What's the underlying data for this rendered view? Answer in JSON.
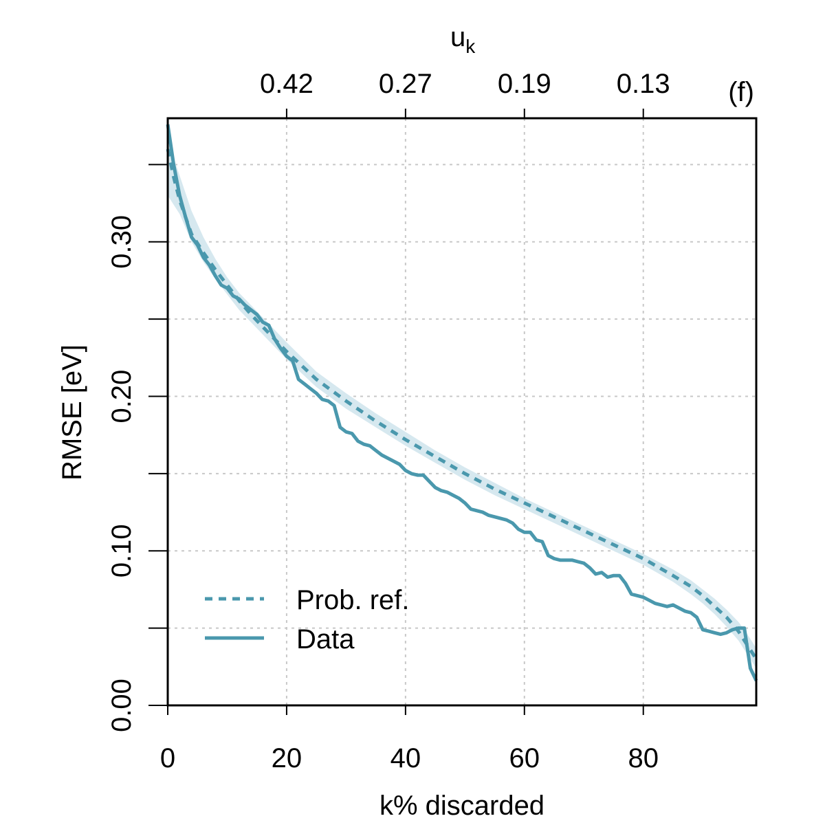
{
  "chart_data": {
    "type": "line",
    "panel_label": "(f)",
    "xlabel": "k% discarded",
    "ylabel": "RMSE [eV]",
    "top_axis_label_main": "u",
    "top_axis_label_sub": "k",
    "xlim": [
      0,
      99
    ],
    "ylim": [
      0,
      0.38
    ],
    "x_ticks": [
      0,
      20,
      40,
      60,
      80
    ],
    "x_tick_labels": [
      "0",
      "20",
      "40",
      "60",
      "80"
    ],
    "y_ticks": [
      0.0,
      0.05,
      0.1,
      0.15,
      0.2,
      0.25,
      0.3,
      0.35
    ],
    "y_tick_labels": [
      "0.00",
      "",
      "0.10",
      "",
      "0.20",
      "",
      "0.30",
      ""
    ],
    "top_ticks": [
      20,
      40,
      60,
      80
    ],
    "top_tick_labels": [
      "0.42",
      "0.27",
      "0.19",
      "0.13"
    ],
    "grid": true,
    "legend_position": "bottom-left",
    "band": {
      "name": "Prob. ref. 95% band",
      "color": "#d6e8ef",
      "x": [
        0,
        2,
        4,
        6,
        8,
        10,
        12,
        14,
        16,
        18,
        20,
        25,
        30,
        35,
        40,
        45,
        50,
        55,
        60,
        65,
        70,
        75,
        80,
        85,
        88,
        90,
        92,
        94,
        96,
        97,
        98,
        99
      ],
      "lower": [
        0.33,
        0.318,
        0.3,
        0.287,
        0.276,
        0.266,
        0.256,
        0.248,
        0.24,
        0.232,
        0.224,
        0.206,
        0.192,
        0.18,
        0.168,
        0.157,
        0.146,
        0.136,
        0.127,
        0.118,
        0.109,
        0.1,
        0.091,
        0.08,
        0.072,
        0.066,
        0.059,
        0.051,
        0.042,
        0.036,
        0.03,
        0.024
      ],
      "upper": [
        0.365,
        0.343,
        0.32,
        0.303,
        0.289,
        0.277,
        0.267,
        0.259,
        0.251,
        0.243,
        0.235,
        0.216,
        0.202,
        0.189,
        0.177,
        0.165,
        0.154,
        0.144,
        0.134,
        0.125,
        0.116,
        0.107,
        0.098,
        0.088,
        0.081,
        0.075,
        0.069,
        0.062,
        0.054,
        0.049,
        0.043,
        0.037
      ]
    },
    "series": [
      {
        "name": "Prob. ref.",
        "style": "dashed",
        "color": "#4a98ad",
        "x": [
          0,
          1,
          2,
          3,
          4,
          6,
          8,
          10,
          12,
          14,
          16,
          18,
          20,
          25,
          30,
          35,
          40,
          45,
          50,
          55,
          60,
          65,
          70,
          75,
          80,
          85,
          88,
          90,
          92,
          94,
          96,
          97,
          98,
          99
        ],
        "values": [
          0.36,
          0.342,
          0.327,
          0.316,
          0.305,
          0.293,
          0.282,
          0.272,
          0.262,
          0.253,
          0.245,
          0.237,
          0.229,
          0.211,
          0.197,
          0.184,
          0.172,
          0.161,
          0.15,
          0.14,
          0.131,
          0.122,
          0.113,
          0.104,
          0.095,
          0.084,
          0.077,
          0.071,
          0.064,
          0.057,
          0.048,
          0.042,
          0.036,
          0.03
        ]
      },
      {
        "name": "Data",
        "style": "solid",
        "color": "#4a98ad",
        "x": [
          0,
          1,
          2,
          3,
          4,
          5,
          6,
          7,
          8,
          9,
          10,
          11,
          12,
          13,
          14,
          15,
          16,
          17,
          18,
          19,
          20,
          21,
          22,
          23,
          24,
          25,
          26,
          27,
          28,
          29,
          30,
          31,
          32,
          33,
          34,
          35,
          36,
          37,
          38,
          39,
          40,
          41,
          42,
          43,
          44,
          45,
          46,
          47,
          48,
          49,
          50,
          51,
          52,
          53,
          54,
          55,
          56,
          57,
          58,
          59,
          60,
          61,
          62,
          63,
          64,
          65,
          66,
          67,
          68,
          69,
          70,
          71,
          72,
          73,
          74,
          75,
          76,
          77,
          78,
          79,
          80,
          81,
          82,
          83,
          84,
          85,
          86,
          87,
          88,
          89,
          90,
          91,
          92,
          93,
          94,
          95,
          96,
          97,
          98,
          99
        ],
        "values": [
          0.376,
          0.35,
          0.33,
          0.316,
          0.303,
          0.298,
          0.29,
          0.285,
          0.278,
          0.272,
          0.27,
          0.265,
          0.263,
          0.259,
          0.256,
          0.253,
          0.248,
          0.246,
          0.237,
          0.231,
          0.226,
          0.223,
          0.211,
          0.208,
          0.205,
          0.202,
          0.198,
          0.197,
          0.194,
          0.18,
          0.177,
          0.176,
          0.171,
          0.169,
          0.168,
          0.165,
          0.162,
          0.16,
          0.158,
          0.156,
          0.152,
          0.15,
          0.149,
          0.149,
          0.145,
          0.141,
          0.139,
          0.138,
          0.136,
          0.134,
          0.131,
          0.127,
          0.126,
          0.125,
          0.123,
          0.122,
          0.121,
          0.12,
          0.118,
          0.114,
          0.112,
          0.112,
          0.107,
          0.106,
          0.097,
          0.095,
          0.094,
          0.094,
          0.094,
          0.093,
          0.092,
          0.089,
          0.085,
          0.086,
          0.083,
          0.084,
          0.084,
          0.079,
          0.072,
          0.071,
          0.07,
          0.068,
          0.066,
          0.065,
          0.064,
          0.065,
          0.063,
          0.061,
          0.06,
          0.057,
          0.049,
          0.048,
          0.047,
          0.046,
          0.047,
          0.049,
          0.05,
          0.05,
          0.024,
          0.016
        ]
      }
    ]
  }
}
